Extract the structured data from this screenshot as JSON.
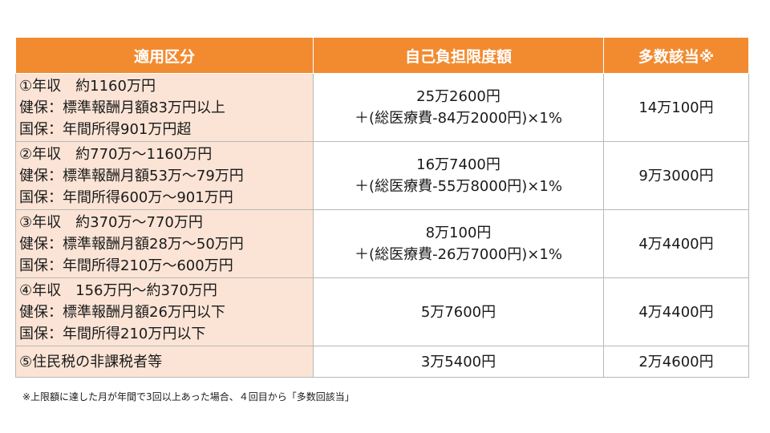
{
  "table": {
    "headers": [
      "適用区分",
      "自己負担限度額",
      "多数該当※"
    ],
    "rows": [
      {
        "category": [
          "①年収　約1160万円",
          "健保：標準報酬月額83万円以上",
          "国保：年間所得901万円超"
        ],
        "limit": [
          "25万2600円",
          "＋(総医療費-84万2000円)×1%"
        ],
        "multiple": "14万100円"
      },
      {
        "category": [
          "②年収　約770万～1160万円",
          "健保：標準報酬月額53万～79万円",
          "国保：年間所得600万～901万円"
        ],
        "limit": [
          "16万7400円",
          "＋(総医療費-55万8000円)×1%"
        ],
        "multiple": "9万3000円"
      },
      {
        "category": [
          "③年収　約370万～770万円",
          "健保：標準報酬月額28万～50万円",
          "国保：年間所得210万～600万円"
        ],
        "limit": [
          "8万100円",
          "＋(総医療費-26万7000円)×1%"
        ],
        "multiple": "4万4400円"
      },
      {
        "category": [
          "④年収　156万円～約370万円",
          "健保：標準報酬月額26万円以下",
          "国保：年間所得210万円以下"
        ],
        "limit": [
          "5万7600円"
        ],
        "multiple": "4万4400円"
      },
      {
        "category": [
          "⑤住民税の非課税者等"
        ],
        "limit": [
          "3万5400円"
        ],
        "multiple": "2万4600円"
      }
    ]
  },
  "footnote": "※上限額に達した月が年間で3回以上あった場合、４回目から「多数回該当」",
  "colors": {
    "header_bg": "#f28b30",
    "category_bg": "#fbe4d6",
    "border": "#b8b8b8"
  }
}
